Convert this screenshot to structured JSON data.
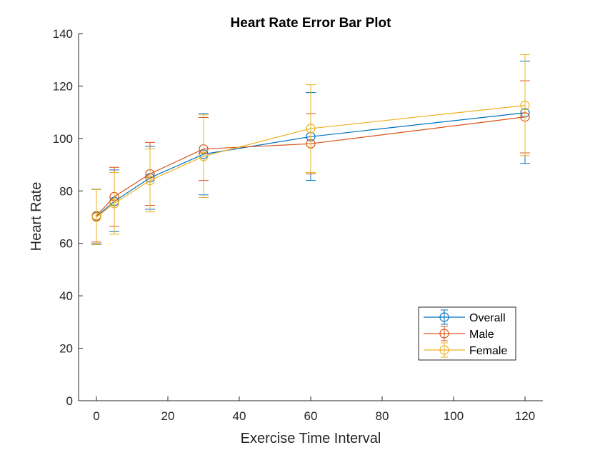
{
  "chart_data": {
    "type": "line",
    "title": "Heart Rate Error Bar Plot",
    "xlabel": "Exercise Time Interval",
    "ylabel": "Heart Rate",
    "xlim": [
      -5,
      125
    ],
    "ylim": [
      0,
      140
    ],
    "xticks": [
      0,
      20,
      40,
      60,
      80,
      100,
      120
    ],
    "yticks": [
      0,
      20,
      40,
      60,
      80,
      100,
      120,
      140
    ],
    "x": [
      0,
      5,
      15,
      30,
      60,
      120
    ],
    "grid": false,
    "legend_position": "bottom-right",
    "series": [
      {
        "name": "Overall",
        "color": "#0072BD",
        "values": [
          70.2,
          76.0,
          85.0,
          94.0,
          100.7,
          109.8
        ],
        "lower": [
          59.8,
          64.5,
          73.0,
          78.5,
          84.0,
          90.5
        ],
        "upper": [
          80.6,
          88.0,
          97.0,
          109.5,
          117.5,
          129.5
        ]
      },
      {
        "name": "Male",
        "color": "#D95319",
        "values": [
          70.5,
          77.8,
          86.5,
          96.0,
          98.0,
          108.2
        ],
        "lower": [
          60.5,
          66.5,
          74.5,
          84.0,
          86.5,
          94.5
        ],
        "upper": [
          80.5,
          89.0,
          98.5,
          108.0,
          109.5,
          122.0
        ]
      },
      {
        "name": "Female",
        "color": "#EDB120",
        "values": [
          70.0,
          75.2,
          84.0,
          93.2,
          103.8,
          112.6
        ],
        "lower": [
          59.5,
          63.5,
          72.0,
          77.5,
          87.0,
          93.5
        ],
        "upper": [
          80.5,
          87.0,
          96.0,
          109.0,
          120.5,
          132.0
        ]
      }
    ]
  }
}
